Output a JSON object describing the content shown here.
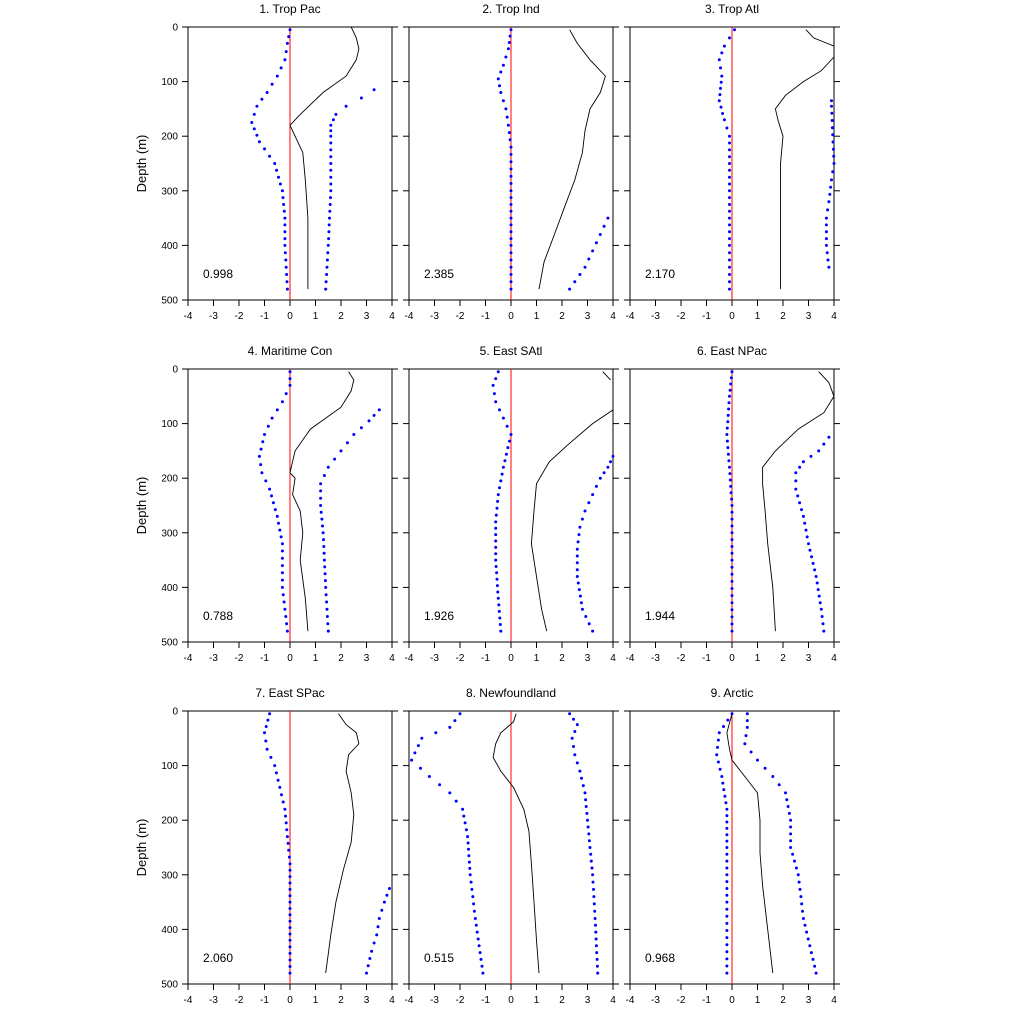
{
  "chart_data": {
    "type": "line",
    "ylabel": "Depth (m)",
    "xlim": [
      -4,
      4
    ],
    "ylim": [
      0,
      500
    ],
    "y_reversed": true,
    "x_ticks": [
      -4,
      -3,
      -2,
      -1,
      0,
      1,
      2,
      3,
      4
    ],
    "y_ticks": [
      0,
      100,
      200,
      300,
      400,
      500
    ],
    "colors": {
      "mean_line": "#000000",
      "bound_dots": "#0000ff",
      "zero_line": "#ff0000"
    },
    "panels": [
      {
        "title": "1. Trop Pac",
        "stat": "0.998",
        "mean": [
          [
            2.4,
            0
          ],
          [
            2.6,
            20
          ],
          [
            2.7,
            40
          ],
          [
            2.6,
            60
          ],
          [
            2.2,
            90
          ],
          [
            1.3,
            120
          ],
          [
            0.4,
            160
          ],
          [
            0,
            180
          ],
          [
            0.2,
            200
          ],
          [
            0.5,
            230
          ],
          [
            0.6,
            280
          ],
          [
            0.7,
            350
          ],
          [
            0.7,
            420
          ],
          [
            0.7,
            480
          ]
        ],
        "upper": [
          [
            3.3,
            115
          ],
          [
            2.8,
            130
          ],
          [
            2.2,
            145
          ],
          [
            1.8,
            160
          ],
          [
            1.6,
            180
          ],
          [
            1.6,
            200
          ],
          [
            1.6,
            250
          ],
          [
            1.6,
            300
          ],
          [
            1.5,
            400
          ],
          [
            1.4,
            480
          ]
        ],
        "lower": [
          [
            0,
            5
          ],
          [
            -0.1,
            30
          ],
          [
            -0.2,
            60
          ],
          [
            -0.5,
            90
          ],
          [
            -0.9,
            120
          ],
          [
            -1.3,
            145
          ],
          [
            -1.5,
            175
          ],
          [
            -1.2,
            210
          ],
          [
            -0.6,
            250
          ],
          [
            -0.3,
            300
          ],
          [
            -0.2,
            350
          ],
          [
            -0.2,
            400
          ],
          [
            -0.1,
            480
          ]
        ]
      },
      {
        "title": "2. Trop Ind",
        "stat": "2.385",
        "mean": [
          [
            2.3,
            5
          ],
          [
            2.6,
            30
          ],
          [
            3.1,
            60
          ],
          [
            3.7,
            90
          ],
          [
            3.5,
            120
          ],
          [
            3.1,
            150
          ],
          [
            2.9,
            190
          ],
          [
            2.8,
            230
          ],
          [
            2.5,
            280
          ],
          [
            2.1,
            330
          ],
          [
            1.7,
            380
          ],
          [
            1.3,
            430
          ],
          [
            1.1,
            480
          ]
        ],
        "upper": [
          [
            3.8,
            350
          ],
          [
            3.5,
            380
          ],
          [
            3.2,
            410
          ],
          [
            2.9,
            440
          ],
          [
            2.3,
            480
          ]
        ],
        "lower": [
          [
            0,
            5
          ],
          [
            -0.1,
            40
          ],
          [
            -0.3,
            70
          ],
          [
            -0.5,
            95
          ],
          [
            -0.4,
            120
          ],
          [
            -0.2,
            150
          ],
          [
            -0.1,
            180
          ],
          [
            0,
            220
          ],
          [
            0,
            300
          ],
          [
            0,
            400
          ],
          [
            0,
            480
          ]
        ]
      },
      {
        "title": "3. Trop Atl",
        "stat": "2.170",
        "mean": [
          [
            2.9,
            5
          ],
          [
            3.2,
            20
          ],
          [
            4,
            35
          ]
        ],
        "mean2": [
          [
            4,
            55
          ],
          [
            3.5,
            80
          ],
          [
            2.8,
            100
          ],
          [
            2.1,
            125
          ],
          [
            1.7,
            150
          ],
          [
            1.8,
            170
          ],
          [
            2,
            200
          ],
          [
            1.9,
            250
          ],
          [
            1.9,
            300
          ],
          [
            1.9,
            400
          ],
          [
            1.9,
            480
          ]
        ],
        "upper": [
          [
            3.9,
            135
          ],
          [
            3.9,
            145
          ],
          [
            4,
            250
          ],
          [
            3.9,
            280
          ],
          [
            3.8,
            320
          ],
          [
            3.7,
            350
          ],
          [
            3.7,
            400
          ],
          [
            3.8,
            440
          ]
        ],
        "lower": [
          [
            0.1,
            5
          ],
          [
            -0.3,
            35
          ],
          [
            -0.5,
            60
          ],
          [
            -0.4,
            90
          ],
          [
            -0.5,
            135
          ],
          [
            -0.3,
            170
          ],
          [
            -0.1,
            200
          ],
          [
            -0.1,
            300
          ],
          [
            -0.1,
            400
          ],
          [
            -0.1,
            480
          ]
        ]
      },
      {
        "title": "4. Maritime Con",
        "stat": "0.788",
        "mean": [
          [
            2.3,
            5
          ],
          [
            2.5,
            20
          ],
          [
            2.4,
            40
          ],
          [
            2,
            70
          ],
          [
            0.8,
            110
          ],
          [
            0.2,
            150
          ],
          [
            0,
            190
          ],
          [
            0.2,
            200
          ],
          [
            0.1,
            230
          ],
          [
            0.4,
            260
          ],
          [
            0.5,
            300
          ],
          [
            0.4,
            350
          ],
          [
            0.6,
            420
          ],
          [
            0.7,
            480
          ]
        ],
        "upper": [
          [
            3.5,
            75
          ],
          [
            3.1,
            95
          ],
          [
            2.5,
            120
          ],
          [
            2,
            150
          ],
          [
            1.5,
            180
          ],
          [
            1.2,
            210
          ],
          [
            1.2,
            250
          ],
          [
            1.3,
            300
          ],
          [
            1.4,
            400
          ],
          [
            1.5,
            480
          ]
        ],
        "lower": [
          [
            0,
            5
          ],
          [
            0,
            30
          ],
          [
            -0.3,
            60
          ],
          [
            -0.7,
            90
          ],
          [
            -1,
            120
          ],
          [
            -1.2,
            160
          ],
          [
            -1.1,
            190
          ],
          [
            -0.8,
            220
          ],
          [
            -0.5,
            270
          ],
          [
            -0.3,
            320
          ],
          [
            -0.3,
            400
          ],
          [
            -0.1,
            480
          ]
        ]
      },
      {
        "title": "5. East SAtl",
        "stat": "1.926",
        "mean": [
          [
            3.6,
            5
          ],
          [
            3.9,
            20
          ]
        ],
        "mean2": [
          [
            4,
            75
          ],
          [
            3.2,
            100
          ],
          [
            2.2,
            140
          ],
          [
            1.5,
            170
          ],
          [
            1,
            210
          ],
          [
            0.9,
            260
          ],
          [
            0.8,
            320
          ],
          [
            1,
            380
          ],
          [
            1.2,
            440
          ],
          [
            1.4,
            480
          ]
        ],
        "upper": [
          [
            4,
            160
          ],
          [
            3.8,
            180
          ],
          [
            3.5,
            200
          ],
          [
            3.2,
            230
          ],
          [
            2.9,
            260
          ],
          [
            2.7,
            290
          ],
          [
            2.6,
            330
          ],
          [
            2.6,
            380
          ],
          [
            2.8,
            440
          ],
          [
            3.2,
            480
          ]
        ],
        "lower": [
          [
            -0.5,
            5
          ],
          [
            -0.7,
            30
          ],
          [
            -0.6,
            60
          ],
          [
            -0.3,
            90
          ],
          [
            0,
            120
          ],
          [
            -0.3,
            180
          ],
          [
            -0.5,
            230
          ],
          [
            -0.6,
            280
          ],
          [
            -0.6,
            350
          ],
          [
            -0.5,
            420
          ],
          [
            -0.4,
            480
          ]
        ]
      },
      {
        "title": "6. East NPac",
        "stat": "1.944",
        "mean": [
          [
            3.4,
            5
          ],
          [
            3.8,
            25
          ],
          [
            4,
            50
          ],
          [
            3.6,
            80
          ],
          [
            2.6,
            110
          ],
          [
            1.7,
            150
          ],
          [
            1.2,
            180
          ],
          [
            1.2,
            210
          ],
          [
            1.3,
            260
          ],
          [
            1.4,
            320
          ],
          [
            1.6,
            400
          ],
          [
            1.7,
            480
          ]
        ],
        "upper": [
          [
            3.8,
            125
          ],
          [
            3.4,
            150
          ],
          [
            2.8,
            170
          ],
          [
            2.5,
            190
          ],
          [
            2.5,
            220
          ],
          [
            2.8,
            270
          ],
          [
            3,
            320
          ],
          [
            3.3,
            380
          ],
          [
            3.5,
            440
          ],
          [
            3.6,
            480
          ]
        ],
        "lower": [
          [
            0,
            5
          ],
          [
            -0.1,
            50
          ],
          [
            -0.2,
            120
          ],
          [
            -0.1,
            180
          ],
          [
            0,
            250
          ],
          [
            0,
            350
          ],
          [
            0,
            480
          ]
        ]
      },
      {
        "title": "7. East SPac",
        "stat": "2.060",
        "mean": [
          [
            1.9,
            5
          ],
          [
            2.2,
            25
          ],
          [
            2.6,
            40
          ],
          [
            2.7,
            60
          ],
          [
            2.3,
            80
          ],
          [
            2.2,
            110
          ],
          [
            2.4,
            150
          ],
          [
            2.5,
            190
          ],
          [
            2.4,
            240
          ],
          [
            2.1,
            290
          ],
          [
            1.8,
            350
          ],
          [
            1.6,
            410
          ],
          [
            1.4,
            480
          ]
        ],
        "upper": [
          [
            3.9,
            325
          ],
          [
            3.7,
            350
          ],
          [
            3.5,
            380
          ],
          [
            3.4,
            410
          ],
          [
            3.2,
            440
          ],
          [
            3,
            480
          ]
        ],
        "lower": [
          [
            -0.8,
            5
          ],
          [
            -1,
            40
          ],
          [
            -0.9,
            70
          ],
          [
            -0.6,
            100
          ],
          [
            -0.4,
            140
          ],
          [
            -0.2,
            180
          ],
          [
            -0.1,
            230
          ],
          [
            0,
            280
          ],
          [
            0,
            350
          ],
          [
            0,
            420
          ],
          [
            0,
            480
          ]
        ]
      },
      {
        "title": "8. Newfoundland",
        "stat": "0.515",
        "mean": [
          [
            0.2,
            5
          ],
          [
            0.1,
            20
          ],
          [
            -0.4,
            40
          ],
          [
            -0.6,
            60
          ],
          [
            -0.7,
            85
          ],
          [
            -0.4,
            110
          ],
          [
            0.1,
            140
          ],
          [
            0.5,
            180
          ],
          [
            0.7,
            220
          ],
          [
            0.8,
            280
          ],
          [
            0.9,
            350
          ],
          [
            1,
            420
          ],
          [
            1.1,
            480
          ]
        ],
        "upper": [
          [
            2.3,
            5
          ],
          [
            2.6,
            25
          ],
          [
            2.4,
            50
          ],
          [
            2.5,
            80
          ],
          [
            2.7,
            110
          ],
          [
            2.9,
            150
          ],
          [
            3,
            200
          ],
          [
            3.1,
            250
          ],
          [
            3.2,
            300
          ],
          [
            3.3,
            380
          ],
          [
            3.4,
            480
          ]
        ],
        "lower": [
          [
            -2,
            5
          ],
          [
            -2.4,
            30
          ],
          [
            -3.5,
            50
          ],
          [
            -3.9,
            90
          ],
          [
            -3.2,
            120
          ],
          [
            -2.4,
            150
          ],
          [
            -1.9,
            180
          ],
          [
            -1.7,
            230
          ],
          [
            -1.6,
            300
          ],
          [
            -1.4,
            380
          ],
          [
            -1.1,
            480
          ]
        ]
      },
      {
        "title": "9. Arctic",
        "stat": "0.968",
        "mean": [
          [
            0,
            5
          ],
          [
            -0.2,
            40
          ],
          [
            -0.1,
            70
          ],
          [
            0,
            90
          ],
          [
            0.5,
            120
          ],
          [
            1,
            150
          ],
          [
            1.1,
            200
          ],
          [
            1.1,
            260
          ],
          [
            1.2,
            320
          ],
          [
            1.4,
            400
          ],
          [
            1.6,
            480
          ]
        ],
        "upper": [
          [
            0.6,
            5
          ],
          [
            0.6,
            30
          ],
          [
            0.5,
            60
          ],
          [
            1,
            90
          ],
          [
            1.6,
            120
          ],
          [
            2.1,
            150
          ],
          [
            2.3,
            200
          ],
          [
            2.3,
            250
          ],
          [
            2.6,
            300
          ],
          [
            2.8,
            380
          ],
          [
            3.3,
            480
          ]
        ],
        "lower": [
          [
            0,
            5
          ],
          [
            -0.5,
            40
          ],
          [
            -0.6,
            80
          ],
          [
            -0.4,
            120
          ],
          [
            -0.2,
            180
          ],
          [
            -0.2,
            250
          ],
          [
            -0.2,
            350
          ],
          [
            -0.2,
            480
          ]
        ]
      }
    ]
  }
}
